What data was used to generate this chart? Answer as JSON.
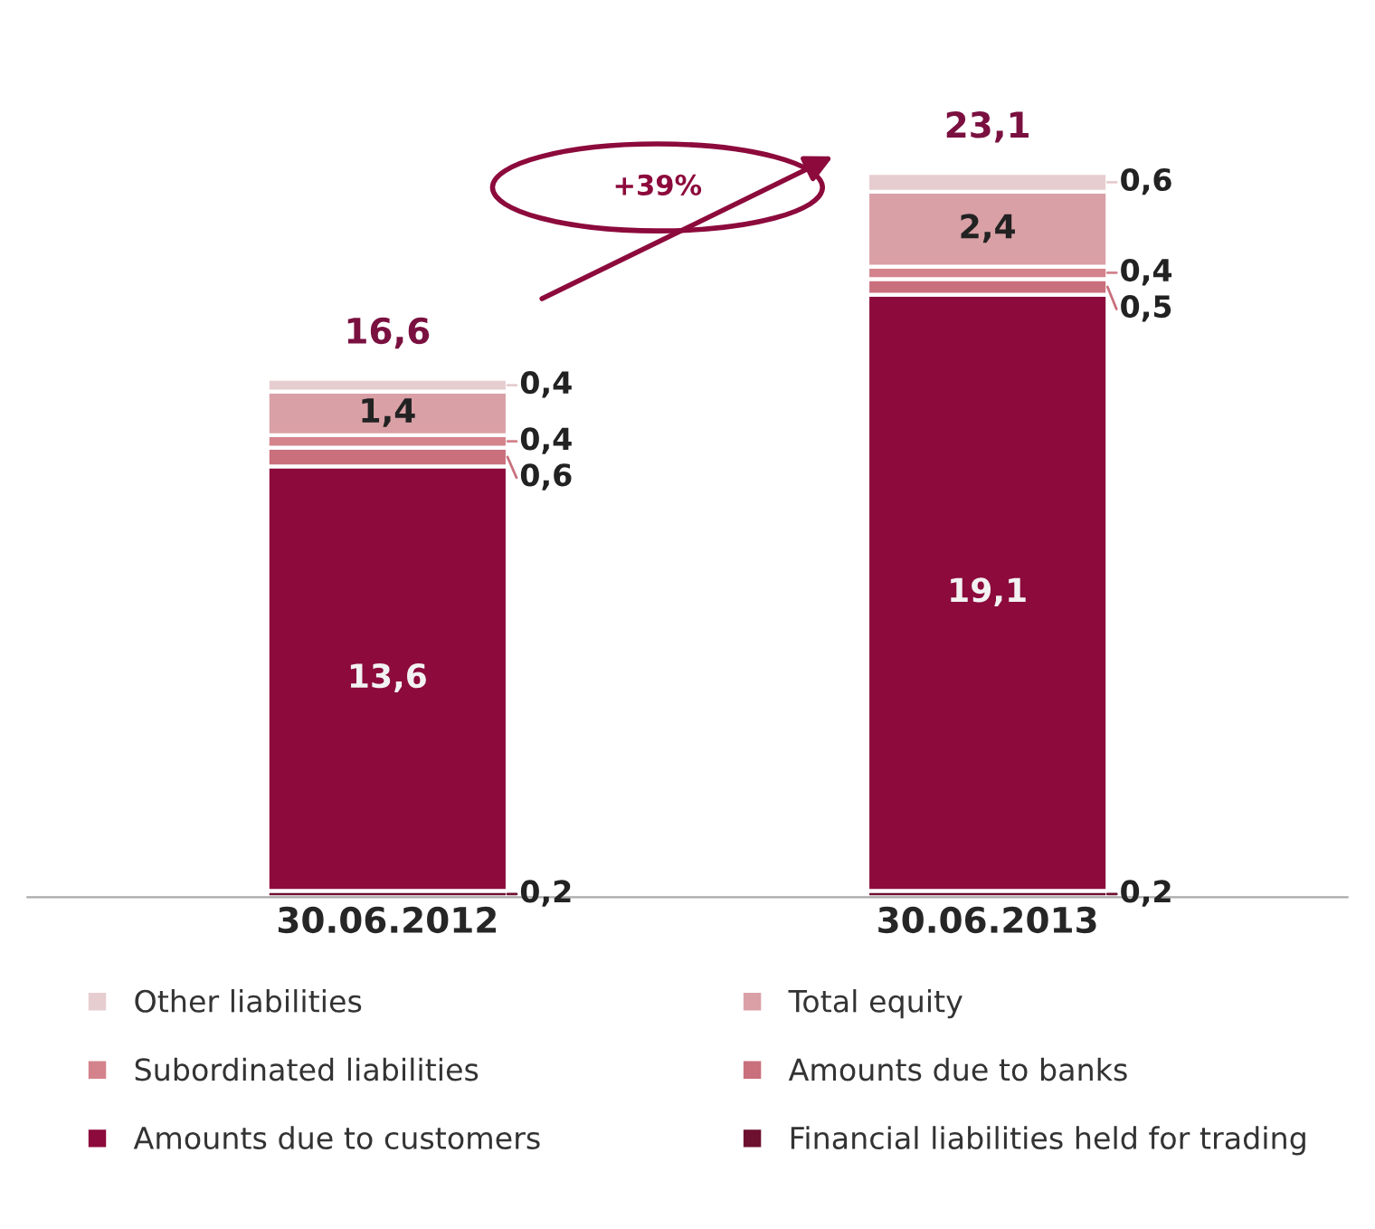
{
  "chart_data": {
    "type": "bar",
    "stacked": true,
    "categories": [
      "30.06.2012",
      "30.06.2013"
    ],
    "series": [
      {
        "name": "Financial liabilities held for trading",
        "color": "#6e1030",
        "values": [
          0.2,
          0.2
        ],
        "value_labels": [
          "0,2",
          "0,2"
        ]
      },
      {
        "name": "Amounts due to customers",
        "color": "#8c0a3c",
        "values": [
          13.6,
          19.1
        ],
        "value_labels": [
          "13,6",
          "19,1"
        ]
      },
      {
        "name": "Amounts due to banks",
        "color": "#c9707c",
        "values": [
          0.6,
          0.5
        ],
        "value_labels": [
          "0,6",
          "0,5"
        ]
      },
      {
        "name": "Subordinated liabilities",
        "color": "#d4838c",
        "values": [
          0.4,
          0.4
        ],
        "value_labels": [
          "0,4",
          "0,4"
        ]
      },
      {
        "name": "Total equity",
        "color": "#d9a0a6",
        "values": [
          1.4,
          2.4
        ],
        "value_labels": [
          "1,4",
          "2,4"
        ]
      },
      {
        "name": "Other liabilities",
        "color": "#e6cdd0",
        "values": [
          0.4,
          0.6
        ],
        "value_labels": [
          "0,4",
          "0,6"
        ]
      }
    ],
    "totals": [
      "16,6",
      "23,1"
    ],
    "annotations": [
      "+39%"
    ],
    "legend": "bottom"
  }
}
